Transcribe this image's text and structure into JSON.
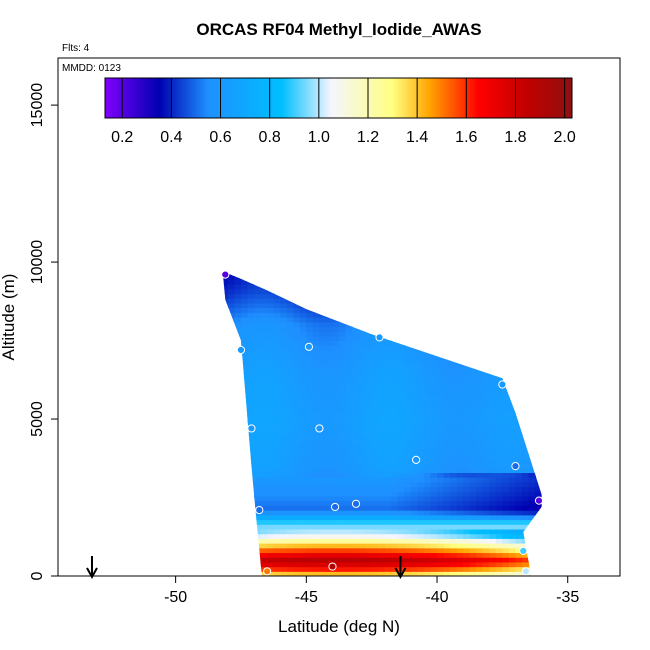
{
  "chart_data": {
    "type": "heatmap",
    "title": "ORCAS RF04 Methyl_Iodide_AWAS",
    "flts_text": "Flts: 4",
    "mmdd_text": "MMDD: 0123",
    "xlabel": "Latitude (deg N)",
    "ylabel": "Altitude (m)",
    "xlim": [
      -54.5,
      -33.0
    ],
    "ylim": [
      0,
      16500
    ],
    "x_ticks": [
      -50,
      -45,
      -40,
      -35
    ],
    "x_tick_labels": [
      "-50",
      "-45",
      "-40",
      "-35"
    ],
    "y_ticks": [
      0,
      5000,
      10000,
      15000
    ],
    "y_tick_labels": [
      "0",
      "5000",
      "10000",
      "15000"
    ],
    "colorbar": {
      "min": 0.13,
      "max": 2.03,
      "ticks": [
        0.2,
        0.4,
        0.6,
        0.8,
        1.0,
        1.2,
        1.4,
        1.6,
        1.8,
        2.0
      ],
      "tick_labels": [
        "0.2",
        "0.4",
        "0.6",
        "0.8",
        "1.0",
        "1.2",
        "1.4",
        "1.6",
        "1.8",
        "2.0"
      ],
      "colors": [
        "#8000ff",
        "#0000b0",
        "#1e90ff",
        "#00bfff",
        "#f5f5ff",
        "#ffff80",
        "#ffa500",
        "#ff0000",
        "#c00000",
        "#901010"
      ],
      "color_stops": [
        0.13,
        0.35,
        0.55,
        0.85,
        1.05,
        1.3,
        1.45,
        1.65,
        1.85,
        2.03
      ]
    },
    "profile_arrows_lat": [
      -53.2,
      -41.4
    ],
    "sample_points": [
      {
        "lat": -48.1,
        "alt": 9600,
        "value": 0.2
      },
      {
        "lat": -47.5,
        "alt": 7200,
        "value": 0.6
      },
      {
        "lat": -44.9,
        "alt": 7300,
        "value": 0.6
      },
      {
        "lat": -42.2,
        "alt": 7600,
        "value": 0.6
      },
      {
        "lat": -37.5,
        "alt": 6100,
        "value": 0.6
      },
      {
        "lat": -47.1,
        "alt": 4700,
        "value": 0.6
      },
      {
        "lat": -44.5,
        "alt": 4700,
        "value": 0.6
      },
      {
        "lat": -40.8,
        "alt": 3700,
        "value": 0.6
      },
      {
        "lat": -37.0,
        "alt": 3500,
        "value": 0.5
      },
      {
        "lat": -36.1,
        "alt": 2400,
        "value": 0.2
      },
      {
        "lat": -46.8,
        "alt": 2100,
        "value": 0.5
      },
      {
        "lat": -43.9,
        "alt": 2200,
        "value": 0.5
      },
      {
        "lat": -43.1,
        "alt": 2300,
        "value": 0.5
      },
      {
        "lat": -36.7,
        "alt": 800,
        "value": 0.9
      },
      {
        "lat": -46.5,
        "alt": 150,
        "value": 1.5
      },
      {
        "lat": -44.0,
        "alt": 300,
        "value": 1.9
      },
      {
        "lat": -36.6,
        "alt": 150,
        "value": 1.0
      }
    ],
    "field_profile": [
      {
        "alt": 0,
        "value": 1.3
      },
      {
        "alt": 200,
        "value": 1.6
      },
      {
        "alt": 500,
        "value": 1.9
      },
      {
        "alt": 900,
        "value": 1.5
      },
      {
        "alt": 1300,
        "value": 1.05
      },
      {
        "alt": 1700,
        "value": 0.9
      },
      {
        "alt": 2100,
        "value": 0.5
      },
      {
        "alt": 2600,
        "value": 0.55
      },
      {
        "alt": 3500,
        "value": 0.62
      },
      {
        "alt": 5000,
        "value": 0.65
      },
      {
        "alt": 6500,
        "value": 0.62
      },
      {
        "alt": 8000,
        "value": 0.55
      },
      {
        "alt": 9000,
        "value": 0.42
      },
      {
        "alt": 9800,
        "value": 0.35
      }
    ],
    "domain_outline": [
      {
        "lat": -48.2,
        "alt": 9700
      },
      {
        "lat": -47.6,
        "alt": 9500
      },
      {
        "lat": -46.5,
        "alt": 9100
      },
      {
        "lat": -45.0,
        "alt": 8500
      },
      {
        "lat": -42.5,
        "alt": 7700
      },
      {
        "lat": -40.0,
        "alt": 7000
      },
      {
        "lat": -37.5,
        "alt": 6300
      },
      {
        "lat": -37.0,
        "alt": 5200
      },
      {
        "lat": -36.0,
        "alt": 2600
      },
      {
        "lat": -36.0,
        "alt": 2200
      },
      {
        "lat": -36.7,
        "alt": 1400
      },
      {
        "lat": -36.4,
        "alt": 0
      },
      {
        "lat": -46.7,
        "alt": 0
      },
      {
        "lat": -46.9,
        "alt": 1700
      },
      {
        "lat": -47.1,
        "alt": 3500
      },
      {
        "lat": -47.3,
        "alt": 5500
      },
      {
        "lat": -47.5,
        "alt": 7500
      },
      {
        "lat": -48.1,
        "alt": 8800
      }
    ]
  }
}
